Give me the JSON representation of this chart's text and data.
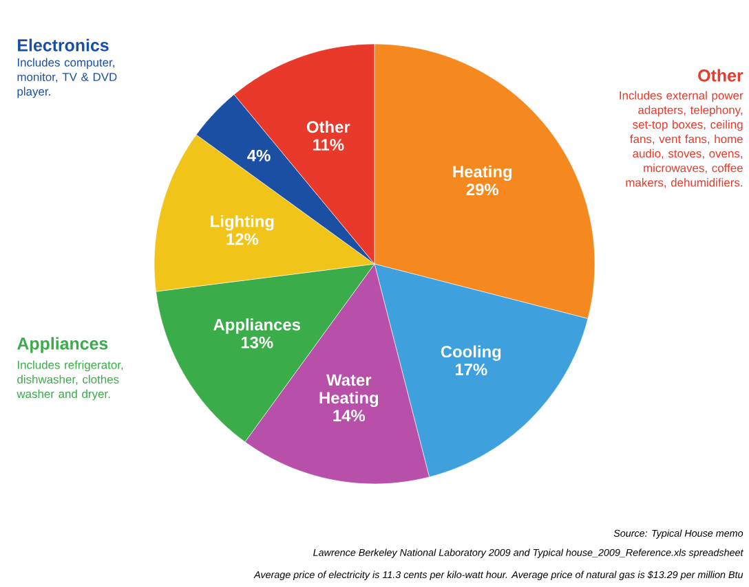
{
  "chart_data": {
    "type": "pie",
    "categories": [
      "Heating",
      "Cooling",
      "Water Heating",
      "Appliances",
      "Lighting",
      null,
      "Other"
    ],
    "values": [
      29,
      17,
      14,
      13,
      12,
      4,
      11
    ],
    "value_labels": [
      "29%",
      "17%",
      "14%",
      "13%",
      "12%",
      "4%",
      "11%"
    ],
    "colors": [
      "#f5891f",
      "#3ea0dc",
      "#b84fa9",
      "#3aac49",
      "#f0c419",
      "#1a4fa3",
      "#e8392a"
    ],
    "annotations": [
      "Electronics",
      "Includes computer, monitor, TV & DVD player.",
      "Appliances",
      "Includes refrigerator, dishwasher, clothes washer and dryer.",
      "Other",
      "Includes external power adapters, telephony, set-top boxes, ceiling fans, vent fans, home audio, stoves, ovens, microwaves, coffee makers, dehumidifiers.",
      "Source: Typical House memo",
      "Lawrence Berkeley National Laboratory 2009 and Typical house_2009_Reference.xls spreadsheet",
      "Average price of electricity is 11.3 cents per kilo-watt hour. Average price of natural gas is $13.29 per million Btu"
    ]
  }
}
